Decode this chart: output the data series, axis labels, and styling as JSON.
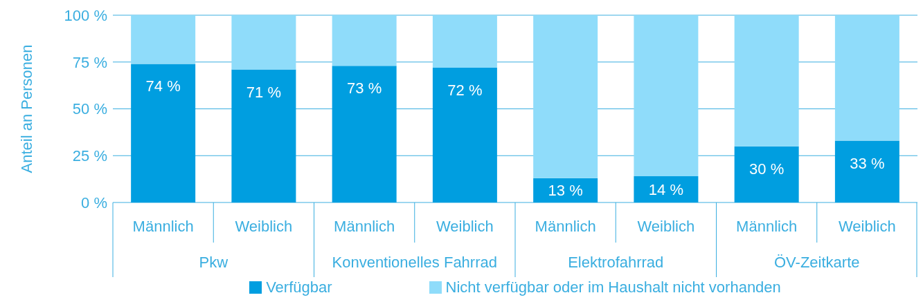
{
  "chart_data": {
    "type": "bar",
    "stacked": true,
    "ylabel": "Anteil an Personen",
    "categories": [
      "Männlich",
      "Weiblich",
      "Männlich",
      "Weiblich",
      "Männlich",
      "Weiblich",
      "Männlich",
      "Weiblich"
    ],
    "annotations": [
      "Pkw",
      "Konventionelles Fahrrad",
      "Elektrofahrrad",
      "ÖV-Zeitkarte"
    ],
    "series": [
      {
        "name": "Verfügbar",
        "color": "#009ee0",
        "values": [
          74,
          71,
          73,
          72,
          13,
          14,
          30,
          33
        ],
        "value_labels": [
          "74 %",
          "71 %",
          "73 %",
          "72 %",
          "13 %",
          "14 %",
          "30 %",
          "33 %"
        ]
      },
      {
        "name": "Nicht verfügbar oder im Haushalt nicht vorhanden",
        "color": "#8fdcfa",
        "values": [
          26,
          29,
          27,
          28,
          87,
          86,
          70,
          67
        ]
      }
    ],
    "ylim": [
      0,
      100
    ],
    "yticks": [
      {
        "value": 0,
        "label": "0 %"
      },
      {
        "value": 25,
        "label": "25 %"
      },
      {
        "value": 50,
        "label": "50 %"
      },
      {
        "value": 75,
        "label": "75 %"
      },
      {
        "value": 100,
        "label": "100 %"
      }
    ],
    "grid": "y",
    "legend": "bottom"
  }
}
